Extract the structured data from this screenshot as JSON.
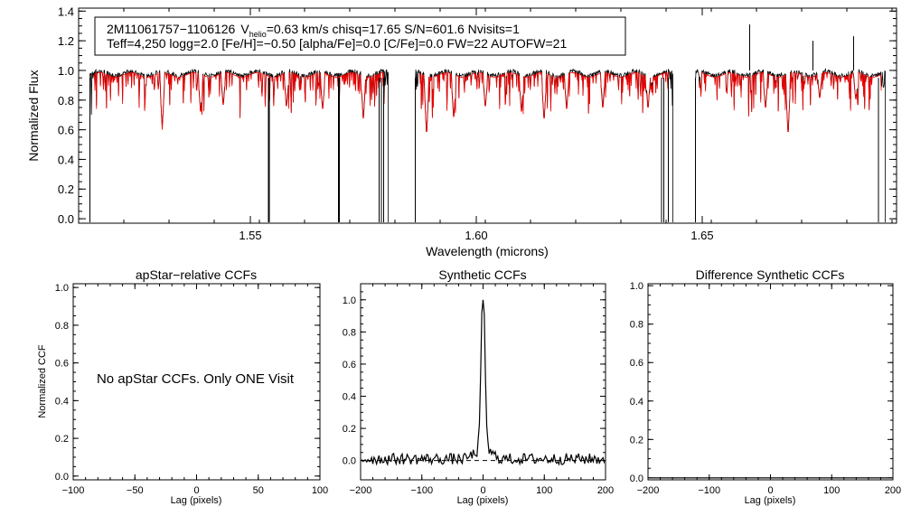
{
  "header": {
    "line1": {
      "star": "2M11061757−1106126",
      "v": "V",
      "v_sub": "helio",
      "v_rest": "=0.63 km/s  chisq=17.65  S/N=601.6  Nvisits=1"
    },
    "line2": "Teff=4,250 logg=2.0 [Fe/H]=−0.50 [alpha/Fe]=0.0 [C/Fe]=0.0 FW=22 AUTOFW=21"
  },
  "colors": {
    "observed": "#000000",
    "model": "#ee0000",
    "frame": "#000000"
  },
  "chart_data": [
    {
      "id": "spectrum",
      "type": "line",
      "xlabel": "Wavelength (microns)",
      "ylabel": "Normalized Flux",
      "xlim": [
        1.512,
        1.693
      ],
      "ylim": [
        -0.03,
        1.42
      ],
      "xticks": [
        1.55,
        1.6,
        1.65
      ],
      "xtick_labels": [
        "1.55",
        "1.60",
        "1.65"
      ],
      "yticks": [
        0.0,
        0.2,
        0.4,
        0.6,
        0.8,
        1.0,
        1.2,
        1.4
      ],
      "ytick_labels": [
        "0.0",
        "0.2",
        "0.4",
        "0.6",
        "0.8",
        "1.0",
        "1.2",
        "1.4"
      ],
      "segments": [
        [
          1.5145,
          1.5805
        ],
        [
          1.5865,
          1.6435
        ],
        [
          1.6485,
          1.6905
        ]
      ],
      "deep_absorption_lines": [
        1.5145,
        1.554,
        1.5542,
        1.5695,
        1.5697,
        1.5785,
        1.579,
        1.5795,
        1.5865,
        1.641,
        1.6415,
        1.6425,
        1.6485,
        1.689
      ],
      "emission_spikes": [
        [
          1.6605,
          1.31
        ],
        [
          1.6745,
          1.2
        ],
        [
          1.6835,
          1.23
        ]
      ],
      "strong_model_lines": [
        [
          1.5305,
          0.6
        ],
        [
          1.539,
          0.7
        ],
        [
          1.544,
          0.75
        ],
        [
          1.558,
          0.74
        ],
        [
          1.566,
          0.72
        ],
        [
          1.575,
          0.65
        ],
        [
          1.589,
          0.55
        ],
        [
          1.595,
          0.66
        ],
        [
          1.602,
          0.74
        ],
        [
          1.61,
          0.7
        ],
        [
          1.615,
          0.65
        ],
        [
          1.62,
          0.72
        ],
        [
          1.628,
          0.73
        ],
        [
          1.638,
          0.73
        ],
        [
          1.664,
          0.73
        ],
        [
          1.669,
          0.55
        ],
        [
          1.676,
          0.8
        ],
        [
          1.684,
          0.79
        ]
      ],
      "series": [
        {
          "name": "",
          "role": "observed",
          "color": "#000000"
        },
        {
          "name": "",
          "role": "model",
          "color": "#ee0000"
        }
      ]
    },
    {
      "id": "apstar-ccf",
      "type": "line",
      "title": "apStar−relative CCFs",
      "xlabel": "Lag (pixels)",
      "ylabel": "Normalized CCF",
      "xlim": [
        -100,
        100
      ],
      "ylim": [
        -0.02,
        1.02
      ],
      "xticks": [
        -100,
        -50,
        0,
        50,
        100
      ],
      "xtick_labels": [
        "−100",
        "−50",
        "0",
        "50",
        "100"
      ],
      "yticks": [
        0.0,
        0.2,
        0.4,
        0.6,
        0.8,
        1.0
      ],
      "ytick_labels": [
        "0.0",
        "0.2",
        "0.4",
        "0.6",
        "0.8",
        "1.0"
      ],
      "annotation": "No apStar CCFs.  Only ONE Visit",
      "series": []
    },
    {
      "id": "synthetic-ccf",
      "type": "line",
      "title": "Synthetic CCFs",
      "xlabel": "Lag (pixels)",
      "xlim": [
        -200,
        200
      ],
      "ylim": [
        -0.12,
        1.1
      ],
      "xticks": [
        -200,
        -100,
        0,
        100,
        200
      ],
      "xtick_labels": [
        "−200",
        "−100",
        "0",
        "100",
        "200"
      ],
      "yticks": [
        0.0,
        0.2,
        0.4,
        0.6,
        0.8,
        1.0
      ],
      "ytick_labels": [
        "0.0",
        "0.2",
        "0.4",
        "0.6",
        "0.8",
        "1.0"
      ],
      "reference_line": {
        "y": 0.0,
        "style": "dashed"
      },
      "peak": {
        "x": 0,
        "y": 1.0
      },
      "series": [
        {
          "name": "",
          "color": "#000000",
          "shape": "sharp peak at lag 0 over noisy baseline near 0"
        }
      ]
    },
    {
      "id": "difference-ccf",
      "type": "line",
      "title": "Difference Synthetic CCFs",
      "xlabel": "Lag (pixels)",
      "xlim": [
        -200,
        200
      ],
      "ylim": [
        -0.01,
        1.01
      ],
      "xticks": [
        -200,
        -100,
        0,
        100,
        200
      ],
      "xtick_labels": [
        "−200",
        "−100",
        "0",
        "100",
        "200"
      ],
      "yticks": [
        0.0,
        0.2,
        0.4,
        0.6,
        0.8,
        1.0
      ],
      "ytick_labels": [
        "0.0",
        "0.2",
        "0.4",
        "0.6",
        "0.8",
        "1.0"
      ],
      "series": [
        {
          "name": "",
          "color": "#000000",
          "constant": 0.0
        }
      ]
    }
  ]
}
